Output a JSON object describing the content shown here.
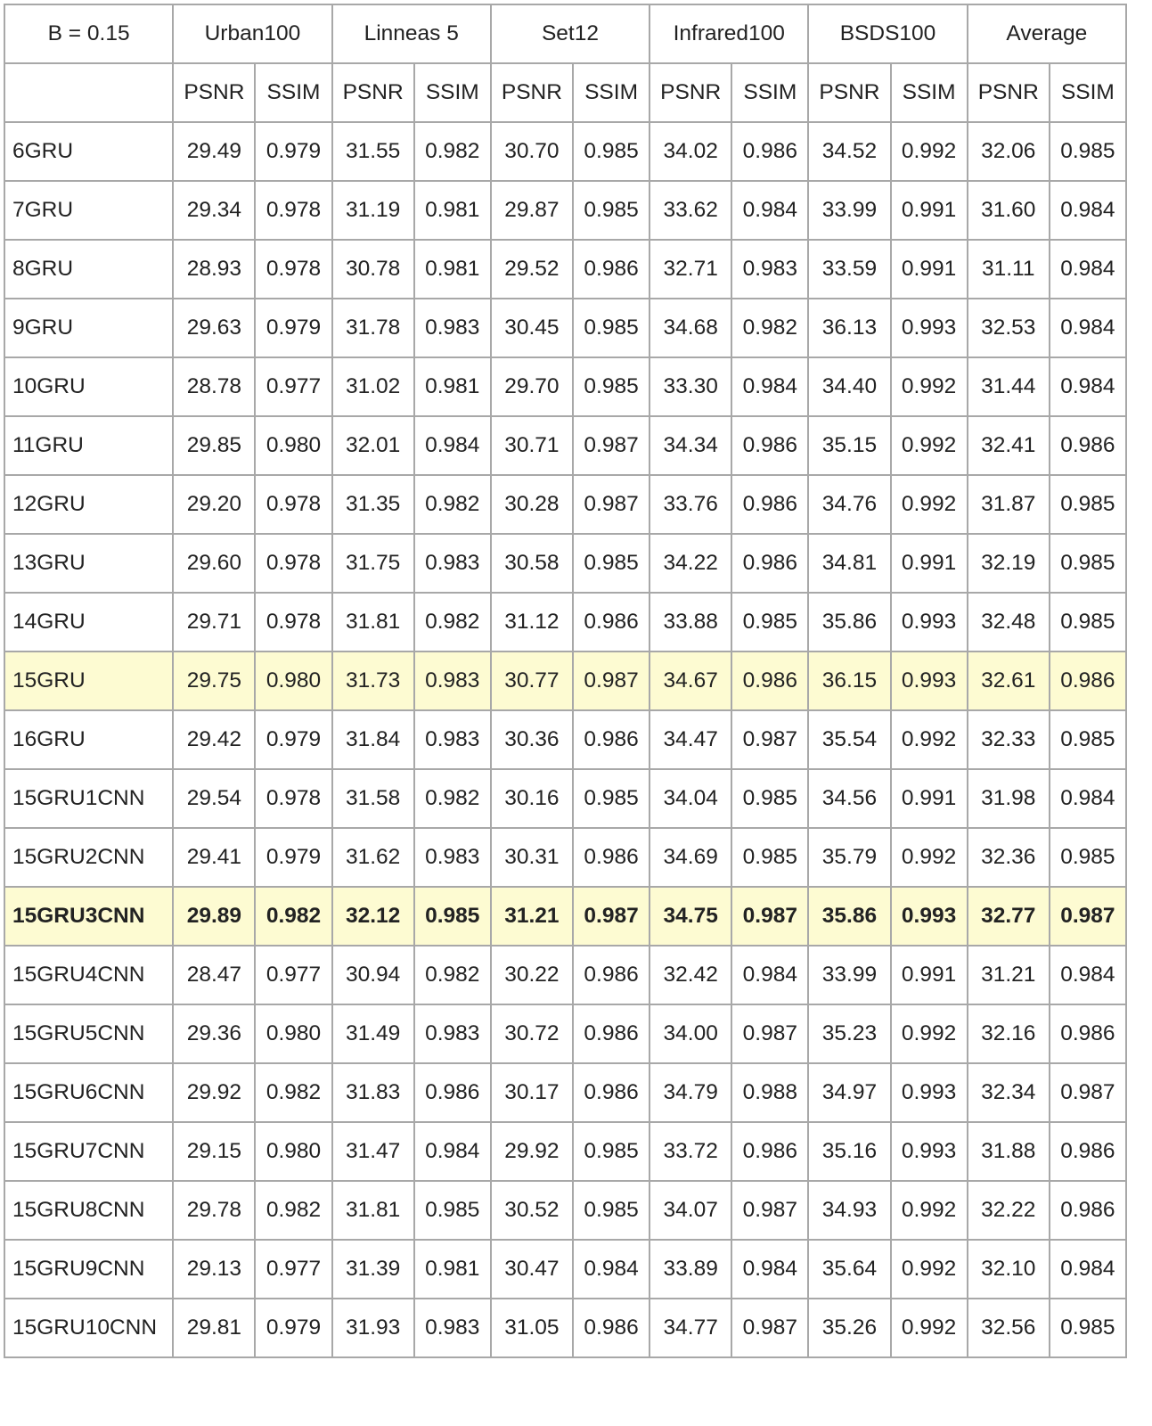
{
  "table": {
    "corner_label": "B = 0.15",
    "datasets": [
      "Urban100",
      "Linneas 5",
      "Set12",
      "Infrared100",
      "BSDS100",
      "Average"
    ],
    "metrics": [
      "PSNR",
      "SSIM"
    ],
    "highlight_color": "#fdfbd2",
    "rows": [
      {
        "label": "6GRU",
        "values": [
          "29.49",
          "0.979",
          "31.55",
          "0.982",
          "30.70",
          "0.985",
          "34.02",
          "0.986",
          "34.52",
          "0.992",
          "32.06",
          "0.985"
        ]
      },
      {
        "label": "7GRU",
        "values": [
          "29.34",
          "0.978",
          "31.19",
          "0.981",
          "29.87",
          "0.985",
          "33.62",
          "0.984",
          "33.99",
          "0.991",
          "31.60",
          "0.984"
        ]
      },
      {
        "label": "8GRU",
        "values": [
          "28.93",
          "0.978",
          "30.78",
          "0.981",
          "29.52",
          "0.986",
          "32.71",
          "0.983",
          "33.59",
          "0.991",
          "31.11",
          "0.984"
        ]
      },
      {
        "label": "9GRU",
        "values": [
          "29.63",
          "0.979",
          "31.78",
          "0.983",
          "30.45",
          "0.985",
          "34.68",
          "0.982",
          "36.13",
          "0.993",
          "32.53",
          "0.984"
        ]
      },
      {
        "label": "10GRU",
        "values": [
          "28.78",
          "0.977",
          "31.02",
          "0.981",
          "29.70",
          "0.985",
          "33.30",
          "0.984",
          "34.40",
          "0.992",
          "31.44",
          "0.984"
        ]
      },
      {
        "label": "11GRU",
        "values": [
          "29.85",
          "0.980",
          "32.01",
          "0.984",
          "30.71",
          "0.987",
          "34.34",
          "0.986",
          "35.15",
          "0.992",
          "32.41",
          "0.986"
        ]
      },
      {
        "label": "12GRU",
        "values": [
          "29.20",
          "0.978",
          "31.35",
          "0.982",
          "30.28",
          "0.987",
          "33.76",
          "0.986",
          "34.76",
          "0.992",
          "31.87",
          "0.985"
        ]
      },
      {
        "label": "13GRU",
        "values": [
          "29.60",
          "0.978",
          "31.75",
          "0.983",
          "30.58",
          "0.985",
          "34.22",
          "0.986",
          "34.81",
          "0.991",
          "32.19",
          "0.985"
        ]
      },
      {
        "label": "14GRU",
        "values": [
          "29.71",
          "0.978",
          "31.81",
          "0.982",
          "31.12",
          "0.986",
          "33.88",
          "0.985",
          "35.86",
          "0.993",
          "32.48",
          "0.985"
        ]
      },
      {
        "label": "15GRU",
        "values": [
          "29.75",
          "0.980",
          "31.73",
          "0.983",
          "30.77",
          "0.987",
          "34.67",
          "0.986",
          "36.15",
          "0.993",
          "32.61",
          "0.986"
        ],
        "highlight": true
      },
      {
        "label": "16GRU",
        "values": [
          "29.42",
          "0.979",
          "31.84",
          "0.983",
          "30.36",
          "0.986",
          "34.47",
          "0.987",
          "35.54",
          "0.992",
          "32.33",
          "0.985"
        ]
      },
      {
        "label": "15GRU1CNN",
        "values": [
          "29.54",
          "0.978",
          "31.58",
          "0.982",
          "30.16",
          "0.985",
          "34.04",
          "0.985",
          "34.56",
          "0.991",
          "31.98",
          "0.984"
        ]
      },
      {
        "label": "15GRU2CNN",
        "values": [
          "29.41",
          "0.979",
          "31.62",
          "0.983",
          "30.31",
          "0.986",
          "34.69",
          "0.985",
          "35.79",
          "0.992",
          "32.36",
          "0.985"
        ]
      },
      {
        "label": "15GRU3CNN",
        "values": [
          "29.89",
          "0.982",
          "32.12",
          "0.985",
          "31.21",
          "0.987",
          "34.75",
          "0.987",
          "35.86",
          "0.993",
          "32.77",
          "0.987"
        ],
        "highlight": true,
        "bold": true
      },
      {
        "label": "15GRU4CNN",
        "values": [
          "28.47",
          "0.977",
          "30.94",
          "0.982",
          "30.22",
          "0.986",
          "32.42",
          "0.984",
          "33.99",
          "0.991",
          "31.21",
          "0.984"
        ]
      },
      {
        "label": "15GRU5CNN",
        "values": [
          "29.36",
          "0.980",
          "31.49",
          "0.983",
          "30.72",
          "0.986",
          "34.00",
          "0.987",
          "35.23",
          "0.992",
          "32.16",
          "0.986"
        ]
      },
      {
        "label": "15GRU6CNN",
        "values": [
          "29.92",
          "0.982",
          "31.83",
          "0.986",
          "30.17",
          "0.986",
          "34.79",
          "0.988",
          "34.97",
          "0.993",
          "32.34",
          "0.987"
        ]
      },
      {
        "label": "15GRU7CNN",
        "values": [
          "29.15",
          "0.980",
          "31.47",
          "0.984",
          "29.92",
          "0.985",
          "33.72",
          "0.986",
          "35.16",
          "0.993",
          "31.88",
          "0.986"
        ]
      },
      {
        "label": "15GRU8CNN",
        "values": [
          "29.78",
          "0.982",
          "31.81",
          "0.985",
          "30.52",
          "0.985",
          "34.07",
          "0.987",
          "34.93",
          "0.992",
          "32.22",
          "0.986"
        ]
      },
      {
        "label": "15GRU9CNN",
        "values": [
          "29.13",
          "0.977",
          "31.39",
          "0.981",
          "30.47",
          "0.984",
          "33.89",
          "0.984",
          "35.64",
          "0.992",
          "32.10",
          "0.984"
        ]
      },
      {
        "label": "15GRU10CNN",
        "values": [
          "29.81",
          "0.979",
          "31.93",
          "0.983",
          "31.05",
          "0.986",
          "34.77",
          "0.987",
          "35.26",
          "0.992",
          "32.56",
          "0.985"
        ]
      }
    ]
  }
}
